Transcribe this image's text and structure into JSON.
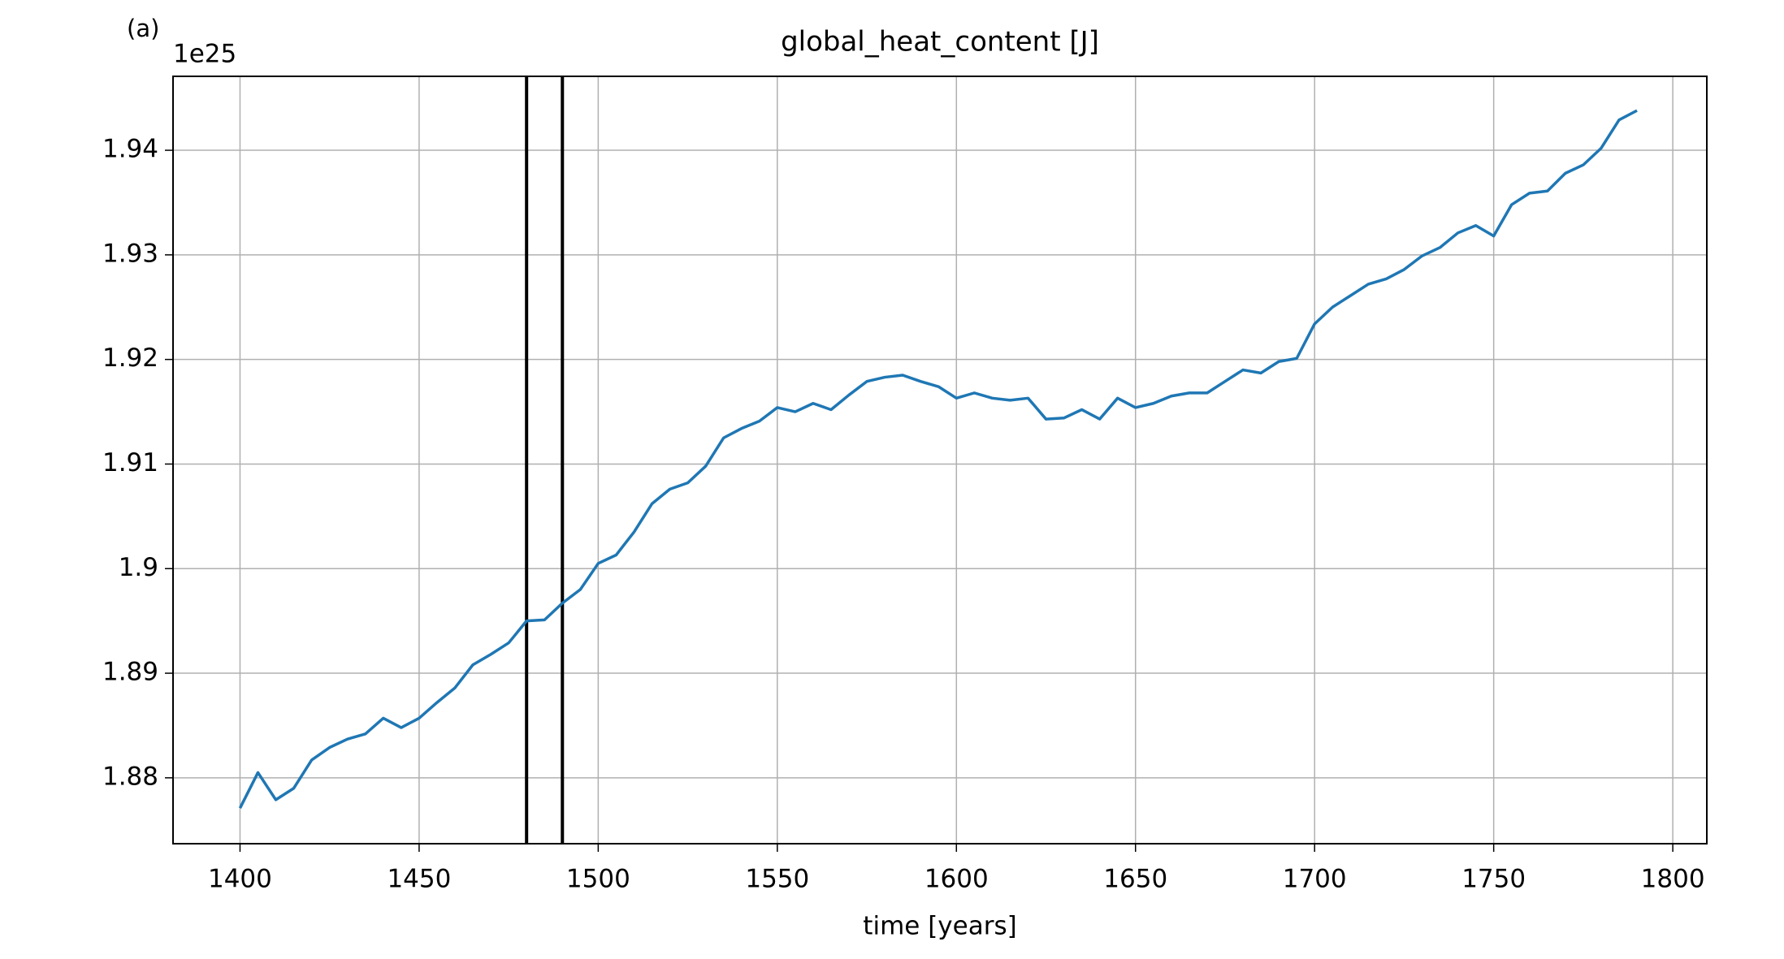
{
  "chart_data": {
    "type": "line",
    "title": "global_heat_content [J]",
    "panel_label": "(a)",
    "offset_label": "1e25",
    "x_label": "time [years]",
    "x": [
      1400,
      1405,
      1410,
      1415,
      1420,
      1425,
      1430,
      1435,
      1440,
      1445,
      1450,
      1455,
      1460,
      1465,
      1470,
      1475,
      1480,
      1485,
      1490,
      1495,
      1500,
      1505,
      1510,
      1515,
      1520,
      1525,
      1530,
      1535,
      1540,
      1545,
      1550,
      1555,
      1560,
      1565,
      1570,
      1575,
      1580,
      1585,
      1590,
      1595,
      1600,
      1605,
      1610,
      1615,
      1620,
      1625,
      1630,
      1635,
      1640,
      1645,
      1650,
      1655,
      1660,
      1665,
      1670,
      1675,
      1680,
      1685,
      1690,
      1695,
      1700,
      1705,
      1710,
      1715,
      1720,
      1725,
      1730,
      1735,
      1740,
      1745,
      1750,
      1755,
      1760,
      1765,
      1770,
      1775,
      1780,
      1785,
      1790
    ],
    "series": [
      {
        "color": "#1f77b4",
        "values": [
          1.8771,
          1.8805,
          1.8779,
          1.879,
          1.8817,
          1.8829,
          1.8837,
          1.8842,
          1.8857,
          1.8848,
          1.8857,
          1.8872,
          1.8886,
          1.8908,
          1.8918,
          1.8929,
          1.895,
          1.8951,
          1.8967,
          1.898,
          1.9005,
          1.9013,
          1.9035,
          1.9062,
          1.9076,
          1.9082,
          1.9098,
          1.9125,
          1.9134,
          1.9141,
          1.9154,
          1.915,
          1.9158,
          1.9152,
          1.9166,
          1.9179,
          1.9183,
          1.9185,
          1.9179,
          1.9174,
          1.9163,
          1.9168,
          1.9163,
          1.9161,
          1.9163,
          1.9143,
          1.9144,
          1.9152,
          1.9143,
          1.9163,
          1.9154,
          1.9158,
          1.9165,
          1.9168,
          1.9168,
          1.9179,
          1.919,
          1.9187,
          1.9198,
          1.9201,
          1.9234,
          1.925,
          1.9261,
          1.9272,
          1.9277,
          1.9286,
          1.9299,
          1.9307,
          1.9321,
          1.9328,
          1.9318,
          1.9348,
          1.9359,
          1.9361,
          1.9378,
          1.9386,
          1.9402,
          1.9429,
          1.9438
        ]
      }
    ],
    "vlines": [
      1480,
      1490
    ],
    "vline_color": "#000000",
    "xlim": [
      1381.3,
      1809.5
    ],
    "ylim": [
      1.8737,
      1.94707
    ],
    "xticks": [
      1400,
      1450,
      1500,
      1550,
      1600,
      1650,
      1700,
      1750,
      1800
    ],
    "yticks": [
      1.88,
      1.89,
      1.9,
      1.91,
      1.92,
      1.93,
      1.94
    ],
    "grid": true
  }
}
